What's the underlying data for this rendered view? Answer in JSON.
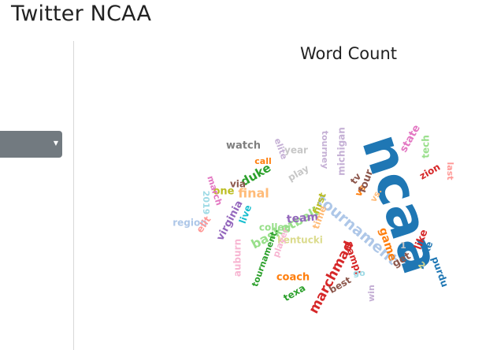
{
  "app": {
    "title": "Twitter NCAA"
  },
  "sidebar": {
    "select_value": ""
  },
  "chart_data": {
    "type": "wordcloud",
    "title": "Word Count",
    "words": [
      {
        "text": "ncaa",
        "color": "#1f77b4"
      },
      {
        "text": "tournament",
        "color": "#aec7e8"
      },
      {
        "text": "basketball",
        "color": "#98df8a"
      },
      {
        "text": "final",
        "color": "#ffbb78"
      },
      {
        "text": "duke",
        "color": "#2ca02c"
      },
      {
        "text": "marchmad",
        "color": "#d62728"
      },
      {
        "text": "virginia",
        "color": "#9467bd"
      },
      {
        "text": "team",
        "color": "#9467bd"
      },
      {
        "text": "game",
        "color": "#ff7f0e"
      },
      {
        "text": "michigan",
        "color": "#c5b0d5"
      },
      {
        "text": "state",
        "color": "#e377c2"
      },
      {
        "text": "tech",
        "color": "#98df8a"
      },
      {
        "text": "zion",
        "color": "#d62728"
      },
      {
        "text": "last",
        "color": "#ff9896"
      },
      {
        "text": "tourney",
        "color": "#c5b0d5"
      },
      {
        "text": "watch",
        "color": "#7f7f7f"
      },
      {
        "text": "year",
        "color": "#c7c7c7"
      },
      {
        "text": "call",
        "color": "#ff7f0e"
      },
      {
        "text": "elite",
        "color": "#c5b0d5"
      },
      {
        "text": "play",
        "color": "#c7c7c7"
      },
      {
        "text": "via",
        "color": "#8c564b"
      },
      {
        "text": "one",
        "color": "#bcbd22"
      },
      {
        "text": "march",
        "color": "#e377c2"
      },
      {
        "text": "2019",
        "color": "#9edae5"
      },
      {
        "text": "region",
        "color": "#aec7e8"
      },
      {
        "text": "elit",
        "color": "#ff9896"
      },
      {
        "text": "live",
        "color": "#17becf"
      },
      {
        "text": "colleg",
        "color": "#98df8a"
      },
      {
        "text": "kentucki",
        "color": "#dbdb8d"
      },
      {
        "text": "player",
        "color": "#f7b6d2"
      },
      {
        "text": "auburn",
        "color": "#f7b6d2"
      },
      {
        "text": "tournament.",
        "color": "#2ca02c"
      },
      {
        "text": "coach",
        "color": "#ff7f0e"
      },
      {
        "text": "texa",
        "color": "#2ca02c"
      },
      {
        "text": "&amp;",
        "color": "#d62728"
      },
      {
        "text": "best",
        "color": "#8c564b"
      },
      {
        "text": "go",
        "color": "#9edae5"
      },
      {
        "text": "win",
        "color": "#c5b0d5"
      },
      {
        "text": "get",
        "color": "#8c564b"
      },
      {
        "text": "like",
        "color": "#d62728"
      },
      {
        "text": "make",
        "color": "#1f77b4"
      },
      {
        "text": "purdu",
        "color": "#1f77b4"
      },
      {
        "text": "1",
        "color": "#c7c7c7"
      },
      {
        "text": "2",
        "color": "#dbdb8d"
      },
      {
        "text": "vs",
        "color": "#ff7f0e"
      },
      {
        "text": "vs.",
        "color": "#ffbb78"
      },
      {
        "text": "four",
        "color": "#8c564b"
      },
      {
        "text": "first",
        "color": "#bcbd22"
      },
      {
        "text": "time",
        "color": "#ffbb78"
      },
      {
        "text": "tv",
        "color": "#8c564b"
      }
    ]
  }
}
